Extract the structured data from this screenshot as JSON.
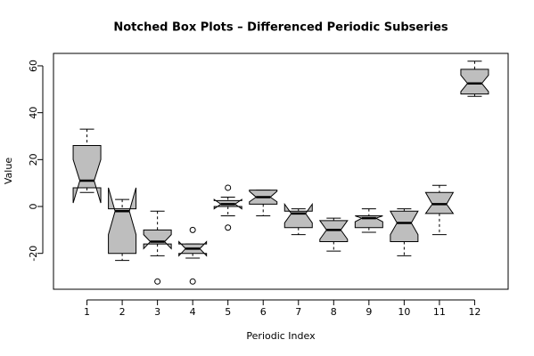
{
  "chart_data": {
    "type": "boxplot",
    "title": "Notched Box Plots – Differenced Periodic Subseries",
    "x_label": "Periodic Index",
    "y_label": "Value",
    "categories": [
      "1",
      "2",
      "3",
      "4",
      "5",
      "6",
      "7",
      "8",
      "9",
      "10",
      "11",
      "12"
    ],
    "xlim": [
      0.05,
      12.95
    ],
    "ylim": [
      -35.3,
      65.3
    ],
    "yticks": [
      -20,
      0,
      20,
      40,
      60
    ],
    "color": "#bebebe",
    "boxes": [
      {
        "low": 6,
        "q1": 8,
        "median": 11,
        "q3": 26,
        "high": 33,
        "notch": [
          1.5,
          20
        ],
        "outliers": []
      },
      {
        "low": -23,
        "q1": -20,
        "median": -2,
        "q3": -1,
        "high": 3,
        "notch": [
          -12,
          8
        ],
        "outliers": []
      },
      {
        "low": -21,
        "q1": -16,
        "median": -15,
        "q3": -10,
        "high": -2,
        "notch": [
          -18,
          -12
        ],
        "outliers": [
          -32
        ]
      },
      {
        "low": -22,
        "q1": -20,
        "median": -18,
        "q3": -16,
        "high": -16,
        "notch": [
          -21,
          -15
        ],
        "outliers": [
          -10,
          -32
        ]
      },
      {
        "low": -4,
        "q1": 0,
        "median": 1,
        "q3": 2.5,
        "high": 4,
        "notch": [
          -1,
          3
        ],
        "outliers": [
          8,
          -9
        ]
      },
      {
        "low": -4,
        "q1": 1,
        "median": 4,
        "q3": 7,
        "high": 7,
        "notch": [
          2,
          6.5
        ],
        "outliers": []
      },
      {
        "low": -12,
        "q1": -9,
        "median": -3,
        "q3": -2,
        "high": -1,
        "notch": [
          -7,
          1
        ],
        "outliers": []
      },
      {
        "low": -19,
        "q1": -15,
        "median": -10,
        "q3": -6,
        "high": -5,
        "notch": [
          -14,
          -6
        ],
        "outliers": []
      },
      {
        "low": -11,
        "q1": -9,
        "median": -5,
        "q3": -4,
        "high": -1,
        "notch": [
          -6.5,
          -4
        ],
        "outliers": []
      },
      {
        "low": -21,
        "q1": -15,
        "median": -7,
        "q3": -2,
        "high": -1,
        "notch": [
          -12,
          -2
        ],
        "outliers": []
      },
      {
        "low": -12,
        "q1": -3,
        "median": 1,
        "q3": 6,
        "high": 9,
        "notch": [
          -3,
          6
        ],
        "outliers": []
      },
      {
        "low": 47,
        "q1": 48,
        "median": 52.5,
        "q3": 58.5,
        "high": 62,
        "notch": [
          49,
          56
        ],
        "outliers": []
      }
    ]
  }
}
